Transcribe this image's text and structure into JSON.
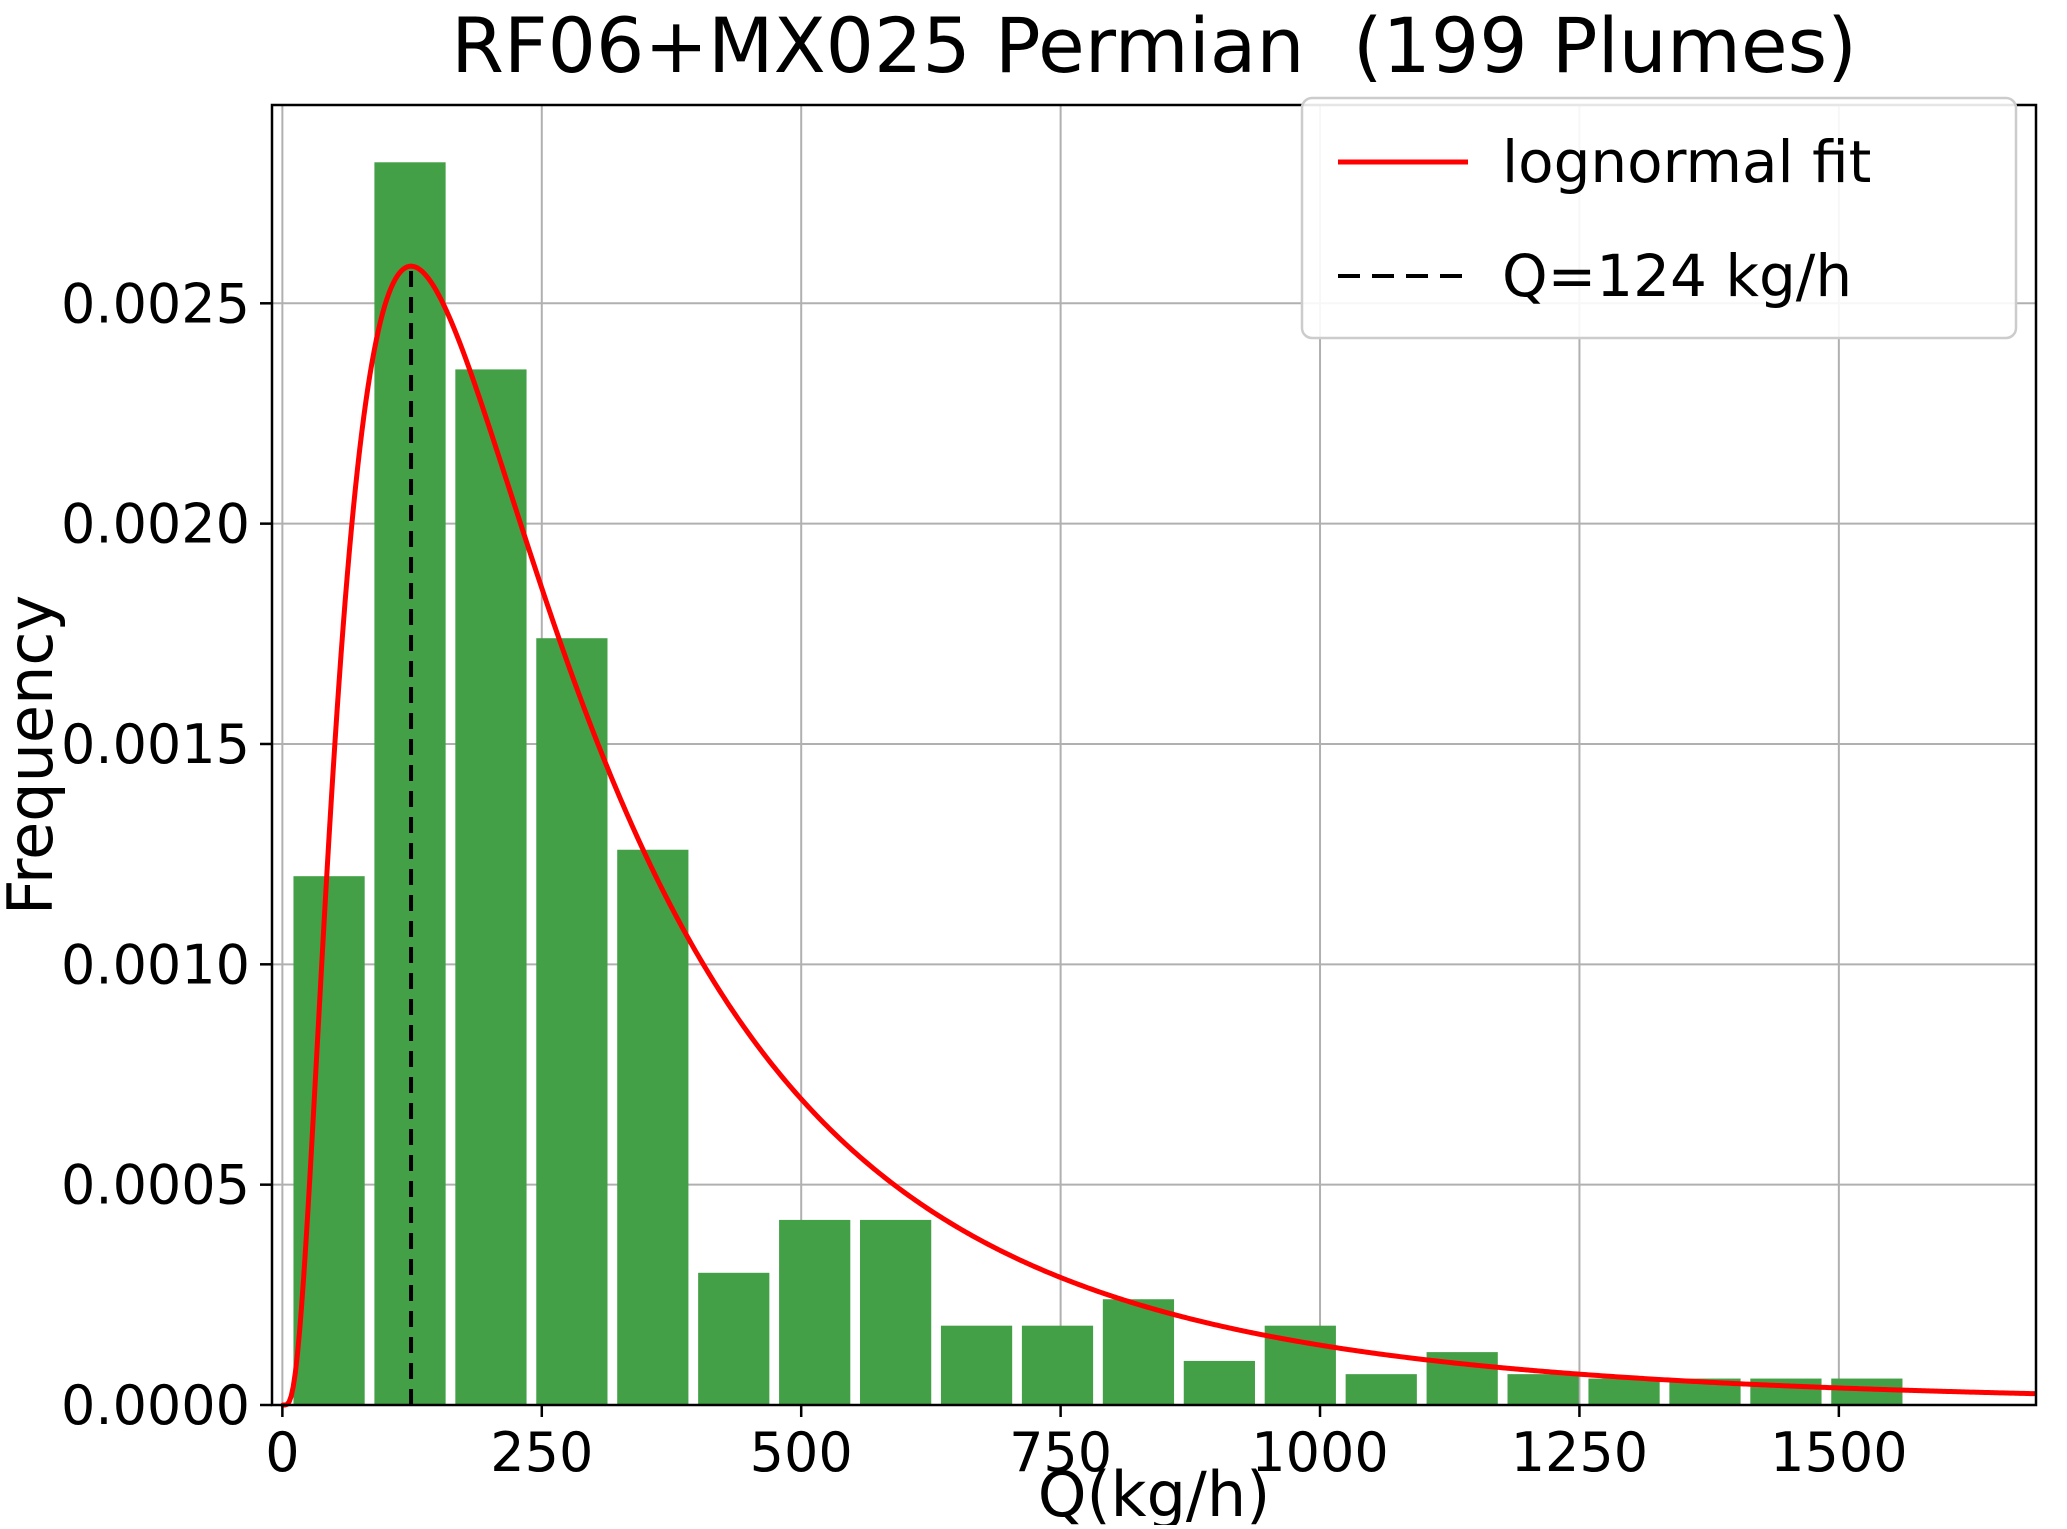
{
  "chart_data": {
    "type": "bar",
    "subtype": "histogram-with-fit",
    "title": "RF06+MX025 Permian  (199 Plumes)",
    "xlabel": "Q(kg/h)",
    "ylabel": "Frequency",
    "n_plumes": 199,
    "x_ticks": [
      0,
      250,
      500,
      750,
      1000,
      1250,
      1500
    ],
    "y_ticks": [
      0.0,
      0.0005,
      0.001,
      0.0015,
      0.002,
      0.0025
    ],
    "y_tick_labels": [
      "0.0000",
      "0.0005",
      "0.0010",
      "0.0015",
      "0.0020",
      "0.0025"
    ],
    "xlim": [
      -10,
      1690
    ],
    "ylim": [
      0,
      0.00295
    ],
    "grid": true,
    "bar_color": "#43a047",
    "bin_start": 6,
    "bin_width": 78,
    "bar_rwidth": 0.88,
    "bin_left_edges": [
      6,
      84,
      162,
      240,
      318,
      396,
      474,
      552,
      630,
      708,
      786,
      864,
      942,
      1020,
      1098,
      1176,
      1254,
      1332,
      1410,
      1488
    ],
    "frequencies": [
      0.0012,
      0.00282,
      0.00235,
      0.00174,
      0.00126,
      0.0003,
      0.00042,
      0.00042,
      0.00018,
      0.00018,
      0.00024,
      0.0001,
      0.00018,
      7e-05,
      0.00012,
      7e-05,
      6e-05,
      6e-05,
      6e-05,
      6e-05
    ],
    "fit": {
      "distribution": "lognormal",
      "mu": 5.56,
      "sigma": 0.86,
      "peak_frequency": 0.00258,
      "color": "#ff0000"
    },
    "vline": {
      "x": 124,
      "style": "dashed",
      "color": "#000000"
    },
    "legend": [
      {
        "label": "lognormal fit",
        "line": "solid",
        "color": "#ff0000"
      },
      {
        "label": "Q=124 kg/h",
        "line": "dashed",
        "color": "#000000"
      }
    ]
  }
}
